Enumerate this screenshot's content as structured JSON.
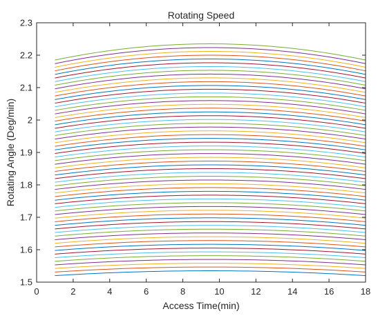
{
  "chart_data": {
    "type": "line",
    "title": "Rotating Speed",
    "xlabel": "Access Time(min)",
    "ylabel": "Rotating Angle (Deg/min)",
    "xlim": [
      0,
      18
    ],
    "ylim": [
      1.5,
      2.3
    ],
    "xticks": [
      "0",
      "2",
      "4",
      "6",
      "8",
      "10",
      "12",
      "14",
      "16",
      "18"
    ],
    "yticks": [
      "1.5",
      "1.6",
      "1.7",
      "1.8",
      "1.9",
      "2",
      "2.1",
      "2.2",
      "2.3"
    ],
    "grid": false,
    "legend": "none",
    "curve_family": {
      "count": 61,
      "x_start": 1,
      "x_end": 18,
      "x_peak": 9.5,
      "bottom_curve_value_at_x1": 1.52,
      "top_curve_value_at_x1": 2.185,
      "bottom_curve_rise_to_peak": 0.015,
      "top_curve_rise_to_peak": 0.05
    },
    "series_colors": [
      "#0072BD",
      "#D95319",
      "#EDB120",
      "#7E2F8E",
      "#77AC30",
      "#4DBEEE",
      "#A2142F"
    ]
  }
}
